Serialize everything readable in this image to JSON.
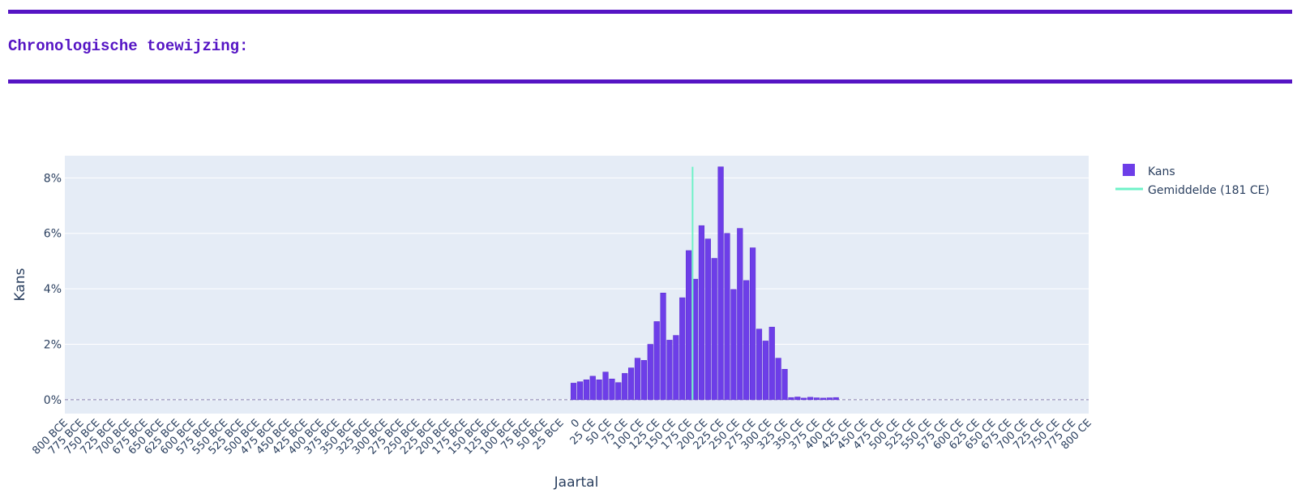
{
  "section": {
    "heading": "Chronologische toewijzing:",
    "rule_color": "#5514c4"
  },
  "chart_data": {
    "type": "bar",
    "title": "",
    "xlabel": "Jaartal",
    "ylabel": "Kans",
    "ylim": [
      -0.5,
      8.8
    ],
    "y_unit": "%",
    "yticks": [
      0,
      2,
      4,
      6,
      8
    ],
    "yticklabels": [
      "0%",
      "2%",
      "4%",
      "6%",
      "8%"
    ],
    "grid": true,
    "plot_background": "#e5ecf6",
    "bar_color": "#6d3ee8",
    "mean_line_color": "#6ff2c8",
    "legend_placement": "top-right, outside plot",
    "legend": [
      {
        "label": "Kans",
        "kind": "bar",
        "color": "#6d3ee8"
      },
      {
        "label": "Gemiddelde (181 CE)",
        "kind": "line",
        "color": "#6ff2c8"
      }
    ],
    "mean_year": 181,
    "mean_value_top": 8.4,
    "x_range": [
      -800,
      800
    ],
    "bin_width": 10,
    "xticks": [
      -800,
      -775,
      -750,
      -725,
      -700,
      -675,
      -650,
      -625,
      -600,
      -575,
      -550,
      -525,
      -500,
      -475,
      -450,
      -425,
      -400,
      -375,
      -350,
      -325,
      -300,
      -275,
      -250,
      -225,
      -200,
      -175,
      -150,
      -125,
      -100,
      -75,
      -50,
      -25,
      0,
      25,
      50,
      75,
      100,
      125,
      150,
      175,
      200,
      225,
      250,
      275,
      300,
      325,
      350,
      375,
      400,
      425,
      450,
      475,
      500,
      525,
      550,
      575,
      600,
      625,
      650,
      675,
      700,
      725,
      750,
      775,
      800
    ],
    "xticklabels": [
      "800 BCE",
      "775 BCE",
      "750 BCE",
      "725 BCE",
      "700 BCE",
      "675 BCE",
      "650 BCE",
      "625 BCE",
      "600 BCE",
      "575 BCE",
      "550 BCE",
      "525 BCE",
      "500 BCE",
      "475 BCE",
      "450 BCE",
      "425 BCE",
      "400 BCE",
      "375 BCE",
      "350 BCE",
      "325 BCE",
      "300 BCE",
      "275 BCE",
      "250 BCE",
      "225 BCE",
      "200 BCE",
      "175 BCE",
      "150 BCE",
      "125 BCE",
      "100 BCE",
      "75 BCE",
      "50 BCE",
      "25 BCE",
      "0",
      "25 CE",
      "50 CE",
      "75 CE",
      "100 CE",
      "125 CE",
      "150 CE",
      "175 CE",
      "200 CE",
      "225 CE",
      "250 CE",
      "275 CE",
      "300 CE",
      "325 CE",
      "350 CE",
      "375 CE",
      "400 CE",
      "425 CE",
      "450 CE",
      "475 CE",
      "500 CE",
      "525 CE",
      "550 CE",
      "575 CE",
      "600 CE",
      "625 CE",
      "650 CE",
      "675 CE",
      "700 CE",
      "725 CE",
      "750 CE",
      "775 CE",
      "800 CE"
    ],
    "x": [
      -5,
      5,
      15,
      25,
      35,
      45,
      55,
      65,
      75,
      85,
      95,
      105,
      115,
      125,
      135,
      145,
      155,
      165,
      175,
      185,
      195,
      205,
      215,
      225,
      235,
      245,
      255,
      265,
      275,
      285,
      295,
      305,
      315,
      325,
      335,
      345,
      355,
      365,
      375,
      385,
      395,
      405
    ],
    "values": [
      0.6,
      0.65,
      0.72,
      0.85,
      0.72,
      1.0,
      0.75,
      0.62,
      0.95,
      1.15,
      1.5,
      1.42,
      2.0,
      2.82,
      3.85,
      2.15,
      2.32,
      3.68,
      5.38,
      4.35,
      6.28,
      5.8,
      5.1,
      8.4,
      6.0,
      3.98,
      6.18,
      4.3,
      5.48,
      2.55,
      2.12,
      2.62,
      1.5,
      1.1,
      0.08,
      0.1,
      0.06,
      0.09,
      0.07,
      0.06,
      0.07,
      0.08
    ]
  }
}
